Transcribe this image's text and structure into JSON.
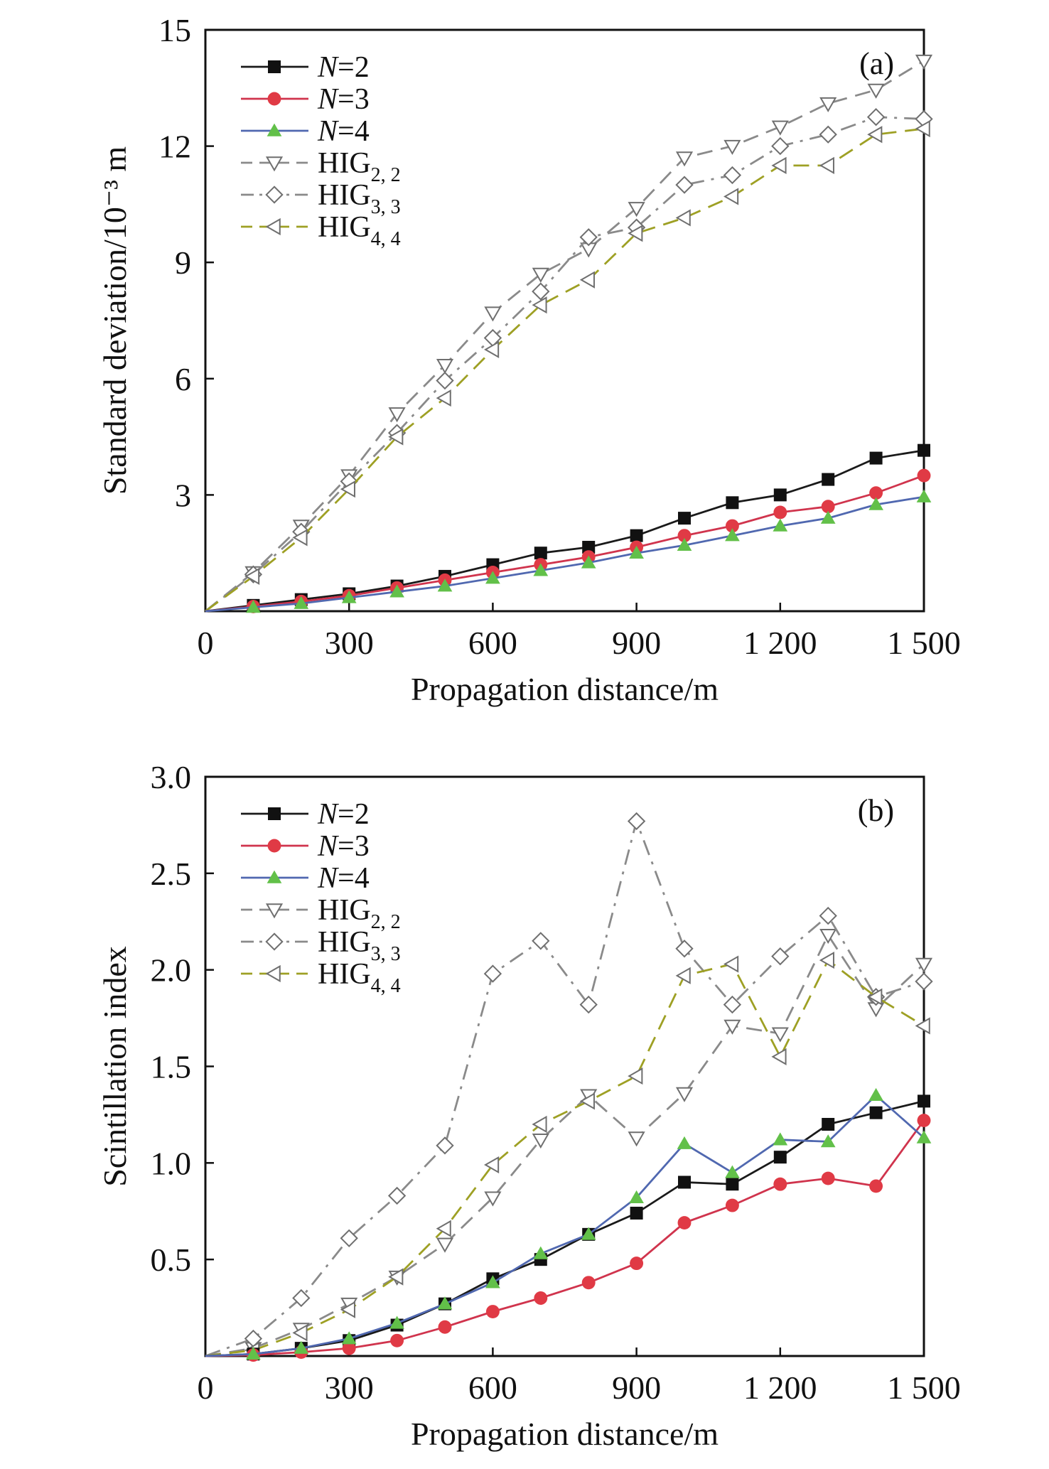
{
  "chart_data": [
    {
      "type": "line",
      "panel_label": "(a)",
      "xlabel": "Propagation distance/m",
      "ylabel": "Standard deviation/10⁻³ m",
      "xlim": [
        0,
        1500
      ],
      "ylim": [
        0,
        15
      ],
      "xticks": [
        0,
        300,
        600,
        900,
        1200,
        1500
      ],
      "xtick_labels": [
        "0",
        "300",
        "600",
        "900",
        "1 200",
        "1 500"
      ],
      "yticks": [
        3,
        6,
        9,
        12,
        15
      ],
      "ytick_labels": [
        "3",
        "6",
        "9",
        "12",
        "15"
      ],
      "grid": false,
      "legend": "top-left",
      "x": [
        0,
        100,
        200,
        300,
        400,
        500,
        600,
        700,
        800,
        900,
        1000,
        1100,
        1200,
        1300,
        1400,
        1500
      ],
      "series": [
        {
          "name": "N=2",
          "name_main": "N",
          "name_tail": "=2",
          "marker": "square",
          "dash": "solid",
          "color": "#1a1a1a",
          "marker_color": "#111111",
          "values": [
            0,
            0.15,
            0.3,
            0.45,
            0.65,
            0.9,
            1.2,
            1.5,
            1.65,
            1.95,
            2.4,
            2.8,
            3.0,
            3.4,
            3.95,
            4.15
          ]
        },
        {
          "name": "N=3",
          "name_main": "N",
          "name_tail": "=3",
          "marker": "circle",
          "dash": "solid",
          "color": "#d0344d",
          "marker_color": "#e03a45",
          "values": [
            0,
            0.12,
            0.25,
            0.4,
            0.6,
            0.8,
            1.0,
            1.2,
            1.4,
            1.65,
            1.95,
            2.2,
            2.55,
            2.7,
            3.05,
            3.5
          ]
        },
        {
          "name": "N=4",
          "name_main": "N",
          "name_tail": "=4",
          "marker": "triangle-up",
          "dash": "solid",
          "color": "#5068b0",
          "marker_color": "#62c049",
          "values": [
            0,
            0.1,
            0.2,
            0.35,
            0.5,
            0.65,
            0.85,
            1.05,
            1.25,
            1.5,
            1.7,
            1.95,
            2.2,
            2.4,
            2.75,
            2.95
          ]
        },
        {
          "name": "HIG2, 2",
          "name_main": "HIG",
          "name_sub": "2, 2",
          "marker": "triangle-down",
          "dash": "dash",
          "color": "#8a8a8a",
          "marker_color": "#6f6f6f",
          "values": [
            0,
            1.0,
            2.2,
            3.5,
            5.1,
            6.35,
            7.7,
            8.7,
            9.35,
            10.4,
            11.7,
            12.0,
            12.5,
            13.1,
            13.45,
            14.2
          ]
        },
        {
          "name": "HIG3, 3",
          "name_main": "HIG",
          "name_sub": "3, 3",
          "marker": "diamond",
          "dash": "dashdot",
          "color": "#8a8a8a",
          "marker_color": "#6f6f6f",
          "values": [
            0,
            0.95,
            2.05,
            3.35,
            4.6,
            5.95,
            7.05,
            8.25,
            9.65,
            9.9,
            11.0,
            11.25,
            12.0,
            12.3,
            12.75,
            12.7
          ]
        },
        {
          "name": "HIG4, 4",
          "name_main": "HIG",
          "name_sub": "4, 4",
          "marker": "triangle-left",
          "dash": "dash",
          "color": "#9ea024",
          "marker_color": "#6f6f6f",
          "values": [
            0,
            0.9,
            1.9,
            3.15,
            4.5,
            5.5,
            6.75,
            7.9,
            8.55,
            9.75,
            10.15,
            10.7,
            11.5,
            11.5,
            12.3,
            12.45
          ]
        }
      ]
    },
    {
      "type": "line",
      "panel_label": "(b)",
      "xlabel": "Propagation distance/m",
      "ylabel": "Scintillation index",
      "xlim": [
        0,
        1500
      ],
      "ylim": [
        0,
        3.0
      ],
      "xticks": [
        0,
        300,
        600,
        900,
        1200,
        1500
      ],
      "xtick_labels": [
        "0",
        "300",
        "600",
        "900",
        "1 200",
        "1 500"
      ],
      "yticks": [
        0.5,
        1.0,
        1.5,
        2.0,
        2.5,
        3.0
      ],
      "ytick_labels": [
        "0.5",
        "1.0",
        "1.5",
        "2.0",
        "2.5",
        "3.0"
      ],
      "grid": false,
      "legend": "top-left",
      "x": [
        0,
        100,
        200,
        300,
        400,
        500,
        600,
        700,
        800,
        900,
        1000,
        1100,
        1200,
        1300,
        1400,
        1500
      ],
      "series": [
        {
          "name": "N=2",
          "name_main": "N",
          "name_tail": "=2",
          "marker": "square",
          "dash": "solid",
          "color": "#1a1a1a",
          "marker_color": "#111111",
          "values": [
            0,
            0.01,
            0.04,
            0.08,
            0.16,
            0.27,
            0.4,
            0.5,
            0.63,
            0.74,
            0.9,
            0.89,
            1.03,
            1.2,
            1.26,
            1.32
          ]
        },
        {
          "name": "N=3",
          "name_main": "N",
          "name_tail": "=3",
          "marker": "circle",
          "dash": "solid",
          "color": "#d0344d",
          "marker_color": "#e03a45",
          "values": [
            0,
            0.005,
            0.02,
            0.04,
            0.08,
            0.15,
            0.23,
            0.3,
            0.38,
            0.48,
            0.69,
            0.78,
            0.89,
            0.92,
            0.88,
            1.22
          ]
        },
        {
          "name": "N=4",
          "name_main": "N",
          "name_tail": "=4",
          "marker": "triangle-up",
          "dash": "solid",
          "color": "#5068b0",
          "marker_color": "#62c049",
          "values": [
            0,
            0.01,
            0.04,
            0.09,
            0.17,
            0.27,
            0.38,
            0.53,
            0.63,
            0.82,
            1.1,
            0.95,
            1.12,
            1.11,
            1.35,
            1.13
          ]
        },
        {
          "name": "HIG2, 2",
          "name_main": "HIG",
          "name_sub": "2, 2",
          "marker": "triangle-down",
          "dash": "dash",
          "color": "#8a8a8a",
          "marker_color": "#6f6f6f",
          "values": [
            0,
            0.04,
            0.14,
            0.27,
            0.41,
            0.58,
            0.82,
            1.12,
            1.35,
            1.13,
            1.36,
            1.71,
            1.67,
            2.18,
            1.8,
            2.03
          ]
        },
        {
          "name": "HIG3, 3",
          "name_main": "HIG",
          "name_sub": "3, 3",
          "marker": "diamond",
          "dash": "dashdot",
          "color": "#8a8a8a",
          "marker_color": "#6f6f6f",
          "values": [
            0,
            0.09,
            0.3,
            0.61,
            0.83,
            1.09,
            1.98,
            2.15,
            1.82,
            2.77,
            2.11,
            1.82,
            2.07,
            2.28,
            1.86,
            1.94
          ]
        },
        {
          "name": "HIG4, 4",
          "name_main": "HIG",
          "name_sub": "4, 4",
          "marker": "triangle-left",
          "dash": "dash",
          "color": "#9ea024",
          "marker_color": "#6f6f6f",
          "values": [
            0,
            0.03,
            0.12,
            0.24,
            0.41,
            0.66,
            0.99,
            1.2,
            1.32,
            1.45,
            1.97,
            2.03,
            1.55,
            2.05,
            1.86,
            1.71
          ]
        }
      ]
    }
  ]
}
